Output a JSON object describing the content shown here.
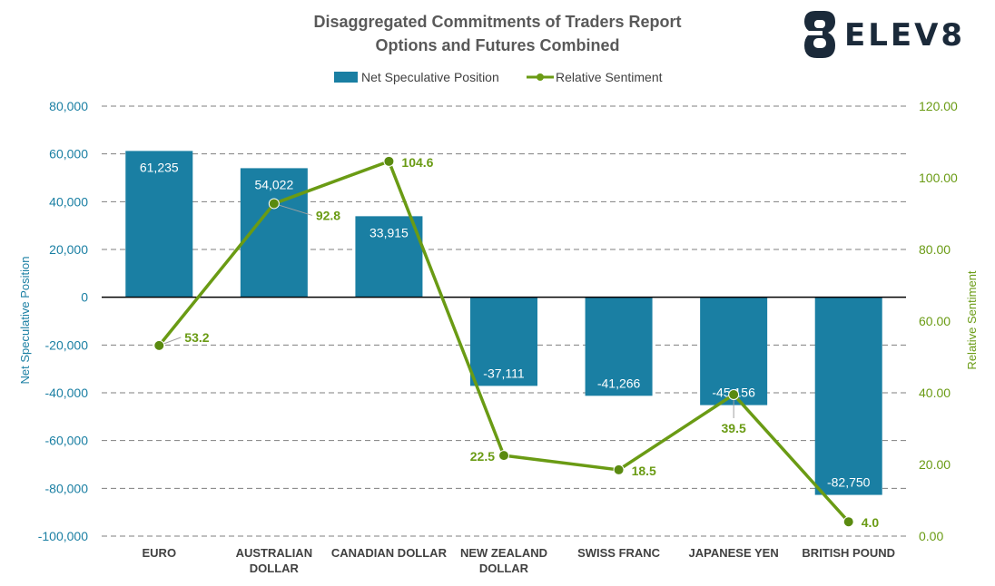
{
  "header": {
    "title_line1": "Disaggregated Commitments of Traders Report",
    "title_line2": "Options and Futures Combined"
  },
  "logo": {
    "text": "ELEV8",
    "icon": "elev8-logo-icon",
    "color": "#1b2a3a"
  },
  "colors": {
    "bar": "#1a7fa3",
    "line": "#6a9b14",
    "marker_fill": "#5a8a10",
    "zero_line": "#000000",
    "grid": "#7f7f7f"
  },
  "chart_data": {
    "type": "bar",
    "categories": [
      [
        "EURO"
      ],
      [
        "AUSTRALIAN",
        "DOLLAR"
      ],
      [
        "CANADIAN DOLLAR"
      ],
      [
        "NEW ZEALAND",
        "DOLLAR"
      ],
      [
        "SWISS FRANC"
      ],
      [
        "JAPANESE YEN"
      ],
      [
        "BRITISH POUND"
      ]
    ],
    "series": [
      {
        "name": "Net Speculative Position",
        "type": "bar",
        "axis": "left",
        "values": [
          61235,
          54022,
          33915,
          -37111,
          -41266,
          -45156,
          -82750
        ],
        "labels": [
          "61,235",
          "54,022",
          "33,915",
          "-37,111",
          "-41,266",
          "-45,156",
          "-82,750"
        ]
      },
      {
        "name": "Relative Sentiment",
        "type": "line",
        "axis": "right",
        "values": [
          53.2,
          92.8,
          104.6,
          22.5,
          18.5,
          39.5,
          4.0
        ],
        "labels": [
          "53.2",
          "92.8",
          "104.6",
          "22.5",
          "18.5",
          "39.5",
          "4.0"
        ]
      }
    ],
    "y_left": {
      "label": "Net Speculative Position",
      "range": [
        -100000,
        80000
      ],
      "ticks": [
        80000,
        60000,
        40000,
        20000,
        0,
        -20000,
        -40000,
        -60000,
        -80000,
        -100000
      ],
      "tick_labels": [
        "80,000",
        "60,000",
        "40,000",
        "20,000",
        "0",
        "-20,000",
        "-40,000",
        "-60,000",
        "-80,000",
        "-100,000"
      ]
    },
    "y_right": {
      "label": "Relative Sentiment",
      "range": [
        0,
        120
      ],
      "ticks": [
        120,
        100,
        80,
        60,
        40,
        20,
        0
      ],
      "tick_labels": [
        "120.00",
        "100.00",
        "80.00",
        "60.00",
        "40.00",
        "20.00",
        "0.00"
      ]
    },
    "grid": "horizontal-dashed",
    "legend": "top-center"
  }
}
